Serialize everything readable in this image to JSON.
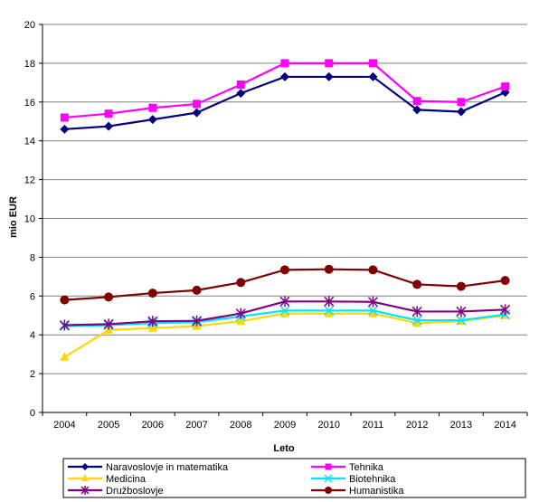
{
  "chart_data": {
    "type": "line",
    "title": "",
    "xlabel": "Leto",
    "ylabel": "mio EUR",
    "categories": [
      "2004",
      "2005",
      "2006",
      "2007",
      "2008",
      "2009",
      "2010",
      "2011",
      "2012",
      "2013",
      "2014"
    ],
    "ylim": [
      0,
      20
    ],
    "yticks": [
      0,
      2,
      4,
      6,
      8,
      10,
      12,
      14,
      16,
      18,
      20
    ],
    "grid": "horizontal",
    "legend_position": "bottom",
    "series": [
      {
        "name": "Naravoslovje in matematika",
        "color": "#000080",
        "marker": "diamond",
        "values": [
          14.6,
          14.75,
          15.1,
          15.45,
          16.45,
          17.3,
          17.3,
          17.3,
          15.6,
          15.5,
          16.5
        ]
      },
      {
        "name": "Tehnika",
        "color": "#FF00FF",
        "marker": "square",
        "values": [
          15.2,
          15.4,
          15.7,
          15.9,
          16.9,
          18.0,
          18.0,
          18.0,
          16.05,
          16.0,
          16.8
        ]
      },
      {
        "name": "Medicina",
        "color": "#FFD700",
        "marker": "triangle",
        "values": [
          2.85,
          4.25,
          4.35,
          4.45,
          4.7,
          5.1,
          5.1,
          5.1,
          4.6,
          4.7,
          5.0
        ]
      },
      {
        "name": "Biotehnika",
        "color": "#00E5FF",
        "marker": "x",
        "values": [
          4.45,
          4.5,
          4.6,
          4.65,
          4.95,
          5.25,
          5.25,
          5.25,
          4.75,
          4.75,
          5.05
        ]
      },
      {
        "name": "Družboslovje",
        "color": "#800080",
        "marker": "star",
        "values": [
          4.5,
          4.55,
          4.7,
          4.72,
          5.1,
          5.72,
          5.72,
          5.7,
          5.2,
          5.2,
          5.3
        ]
      },
      {
        "name": "Humanistika",
        "color": "#800000",
        "marker": "circle",
        "values": [
          5.8,
          5.95,
          6.15,
          6.3,
          6.7,
          7.35,
          7.38,
          7.35,
          6.6,
          6.5,
          6.8
        ]
      }
    ]
  }
}
